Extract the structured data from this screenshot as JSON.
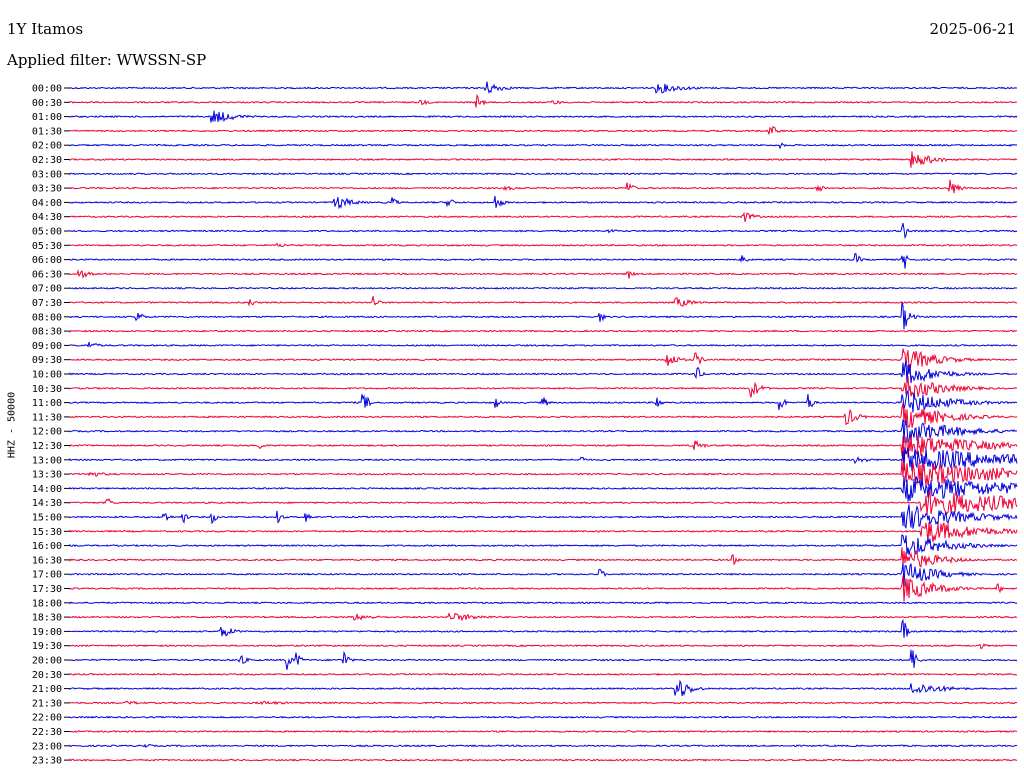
{
  "header": {
    "title": "1Y Itamos",
    "date": "2025-06-21",
    "filter_label": "Applied filter: WWSSN-SP",
    "y_axis_label": "HHZ - 50000"
  },
  "colors": {
    "blue": "#0000dd",
    "red": "#ee0033"
  },
  "chart_data": {
    "type": "line",
    "title": "1Y Itamos",
    "subtitle": "Applied filter: WWSSN-SP",
    "ylabel": "HHZ - 50000",
    "row_labels": [
      "00:00",
      "00:30",
      "01:00",
      "01:30",
      "02:00",
      "02:30",
      "03:00",
      "03:30",
      "04:00",
      "04:30",
      "05:00",
      "05:30",
      "06:00",
      "06:30",
      "07:00",
      "07:30",
      "08:00",
      "08:30",
      "09:00",
      "09:30",
      "10:00",
      "10:30",
      "11:00",
      "11:30",
      "12:00",
      "12:30",
      "13:00",
      "13:30",
      "14:00",
      "14:30",
      "15:00",
      "15:30",
      "16:00",
      "16:30",
      "17:00",
      "17:30",
      "18:00",
      "18:30",
      "19:00",
      "19:30",
      "20:00",
      "20:30",
      "21:00",
      "21:30",
      "22:00",
      "22:30",
      "23:00",
      "23:30"
    ],
    "row_colors": [
      "blue",
      "red"
    ],
    "events": [
      {
        "row": 0,
        "t": 0.44,
        "amp": 7,
        "dur": 0.015
      },
      {
        "row": 0,
        "t": 0.62,
        "amp": 6,
        "dur": 0.025
      },
      {
        "row": 1,
        "t": 0.37,
        "amp": 3,
        "dur": 0.01
      },
      {
        "row": 1,
        "t": 0.43,
        "amp": 8,
        "dur": 0.005
      },
      {
        "row": 1,
        "t": 0.51,
        "amp": 3,
        "dur": 0.01
      },
      {
        "row": 2,
        "t": 0.15,
        "amp": 8,
        "dur": 0.02
      },
      {
        "row": 3,
        "t": 0.74,
        "amp": 7,
        "dur": 0.006
      },
      {
        "row": 4,
        "t": 0.75,
        "amp": 3,
        "dur": 0.006
      },
      {
        "row": 5,
        "t": 0.89,
        "amp": 9,
        "dur": 0.02
      },
      {
        "row": 7,
        "t": 0.46,
        "amp": 2,
        "dur": 0.02
      },
      {
        "row": 7,
        "t": 0.59,
        "amp": 9,
        "dur": 0.004
      },
      {
        "row": 7,
        "t": 0.79,
        "amp": 9,
        "dur": 0.004
      },
      {
        "row": 7,
        "t": 0.93,
        "amp": 9,
        "dur": 0.008
      },
      {
        "row": 8,
        "t": 0.28,
        "amp": 8,
        "dur": 0.015
      },
      {
        "row": 8,
        "t": 0.34,
        "amp": 8,
        "dur": 0.004
      },
      {
        "row": 8,
        "t": 0.4,
        "amp": 8,
        "dur": 0.004
      },
      {
        "row": 8,
        "t": 0.45,
        "amp": 8,
        "dur": 0.006
      },
      {
        "row": 9,
        "t": 0.71,
        "amp": 7,
        "dur": 0.01
      },
      {
        "row": 10,
        "t": 0.57,
        "amp": 2,
        "dur": 0.01
      },
      {
        "row": 10,
        "t": 0.88,
        "amp": 13,
        "dur": 0.003
      },
      {
        "row": 11,
        "t": 0.22,
        "amp": 2,
        "dur": 0.02
      },
      {
        "row": 12,
        "t": 0.71,
        "amp": 7,
        "dur": 0.004
      },
      {
        "row": 12,
        "t": 0.83,
        "amp": 7,
        "dur": 0.004
      },
      {
        "row": 12,
        "t": 0.88,
        "amp": 14,
        "dur": 0.004
      },
      {
        "row": 13,
        "t": 0.01,
        "amp": 5,
        "dur": 0.01
      },
      {
        "row": 13,
        "t": 0.59,
        "amp": 6,
        "dur": 0.004
      },
      {
        "row": 15,
        "t": 0.19,
        "amp": 6,
        "dur": 0.004
      },
      {
        "row": 15,
        "t": 0.32,
        "amp": 9,
        "dur": 0.004
      },
      {
        "row": 15,
        "t": 0.64,
        "amp": 6,
        "dur": 0.015
      },
      {
        "row": 16,
        "t": 0.07,
        "amp": 7,
        "dur": 0.006
      },
      {
        "row": 16,
        "t": 0.56,
        "amp": 6,
        "dur": 0.004
      },
      {
        "row": 16,
        "t": 0.88,
        "amp": 15,
        "dur": 0.006
      },
      {
        "row": 18,
        "t": 0.02,
        "amp": 4,
        "dur": 0.01
      },
      {
        "row": 19,
        "t": 0.63,
        "amp": 9,
        "dur": 0.01
      },
      {
        "row": 19,
        "t": 0.66,
        "amp": 9,
        "dur": 0.006
      },
      {
        "row": 19,
        "t": 0.88,
        "amp": 14,
        "dur": 0.03
      },
      {
        "row": 20,
        "t": 0.66,
        "amp": 14,
        "dur": 0.004
      },
      {
        "row": 20,
        "t": 0.88,
        "amp": 14,
        "dur": 0.03
      },
      {
        "row": 21,
        "t": 0.72,
        "amp": 10,
        "dur": 0.008
      },
      {
        "row": 21,
        "t": 0.88,
        "amp": 14,
        "dur": 0.035
      },
      {
        "row": 22,
        "t": 0.31,
        "amp": 10,
        "dur": 0.006
      },
      {
        "row": 22,
        "t": 0.45,
        "amp": 6,
        "dur": 0.004
      },
      {
        "row": 22,
        "t": 0.5,
        "amp": 7,
        "dur": 0.004
      },
      {
        "row": 22,
        "t": 0.62,
        "amp": 8,
        "dur": 0.004
      },
      {
        "row": 22,
        "t": 0.75,
        "amp": 10,
        "dur": 0.004
      },
      {
        "row": 22,
        "t": 0.78,
        "amp": 10,
        "dur": 0.004
      },
      {
        "row": 22,
        "t": 0.88,
        "amp": 14,
        "dur": 0.04
      },
      {
        "row": 23,
        "t": 0.82,
        "amp": 10,
        "dur": 0.01
      },
      {
        "row": 23,
        "t": 0.88,
        "amp": 14,
        "dur": 0.04
      },
      {
        "row": 24,
        "t": 0.88,
        "amp": 14,
        "dur": 0.05
      },
      {
        "row": 25,
        "t": 0.2,
        "amp": 5,
        "dur": 0.004
      },
      {
        "row": 25,
        "t": 0.66,
        "amp": 6,
        "dur": 0.008
      },
      {
        "row": 25,
        "t": 0.88,
        "amp": 14,
        "dur": 0.07
      },
      {
        "row": 26,
        "t": 0.54,
        "amp": 5,
        "dur": 0.004
      },
      {
        "row": 26,
        "t": 0.83,
        "amp": 5,
        "dur": 0.01
      },
      {
        "row": 26,
        "t": 0.88,
        "amp": 14,
        "dur": 0.12
      },
      {
        "row": 27,
        "t": 0.02,
        "amp": 3,
        "dur": 0.02
      },
      {
        "row": 27,
        "t": 0.88,
        "amp": 14,
        "dur": 0.12
      },
      {
        "row": 28,
        "t": 0.88,
        "amp": 14,
        "dur": 0.12
      },
      {
        "row": 29,
        "t": 0.04,
        "amp": 6,
        "dur": 0.004
      },
      {
        "row": 29,
        "t": 0.9,
        "amp": 14,
        "dur": 0.12
      },
      {
        "row": 30,
        "t": 0.1,
        "amp": 8,
        "dur": 0.004
      },
      {
        "row": 30,
        "t": 0.12,
        "amp": 6,
        "dur": 0.004
      },
      {
        "row": 30,
        "t": 0.15,
        "amp": 8,
        "dur": 0.004
      },
      {
        "row": 30,
        "t": 0.22,
        "amp": 7,
        "dur": 0.004
      },
      {
        "row": 30,
        "t": 0.25,
        "amp": 6,
        "dur": 0.004
      },
      {
        "row": 30,
        "t": 0.88,
        "amp": 14,
        "dur": 0.06
      },
      {
        "row": 31,
        "t": 0.9,
        "amp": 14,
        "dur": 0.05
      },
      {
        "row": 32,
        "t": 0.88,
        "amp": 14,
        "dur": 0.04
      },
      {
        "row": 33,
        "t": 0.7,
        "amp": 6,
        "dur": 0.004
      },
      {
        "row": 33,
        "t": 0.88,
        "amp": 14,
        "dur": 0.03
      },
      {
        "row": 34,
        "t": 0.56,
        "amp": 6,
        "dur": 0.004
      },
      {
        "row": 34,
        "t": 0.88,
        "amp": 14,
        "dur": 0.03
      },
      {
        "row": 35,
        "t": 0.88,
        "amp": 14,
        "dur": 0.03
      },
      {
        "row": 35,
        "t": 0.98,
        "amp": 6,
        "dur": 0.004
      },
      {
        "row": 37,
        "t": 0.3,
        "amp": 4,
        "dur": 0.02
      },
      {
        "row": 37,
        "t": 0.4,
        "amp": 5,
        "dur": 0.03
      },
      {
        "row": 38,
        "t": 0.16,
        "amp": 8,
        "dur": 0.01
      },
      {
        "row": 38,
        "t": 0.88,
        "amp": 14,
        "dur": 0.004
      },
      {
        "row": 39,
        "t": 0.96,
        "amp": 4,
        "dur": 0.006
      },
      {
        "row": 40,
        "t": 0.18,
        "amp": 6,
        "dur": 0.006
      },
      {
        "row": 40,
        "t": 0.23,
        "amp": 10,
        "dur": 0.004
      },
      {
        "row": 40,
        "t": 0.24,
        "amp": 8,
        "dur": 0.004
      },
      {
        "row": 40,
        "t": 0.29,
        "amp": 10,
        "dur": 0.004
      },
      {
        "row": 40,
        "t": 0.89,
        "amp": 14,
        "dur": 0.004
      },
      {
        "row": 42,
        "t": 0.64,
        "amp": 14,
        "dur": 0.012
      },
      {
        "row": 42,
        "t": 0.89,
        "amp": 7,
        "dur": 0.03
      },
      {
        "row": 43,
        "t": 0.06,
        "amp": 2,
        "dur": 0.02
      },
      {
        "row": 43,
        "t": 0.2,
        "amp": 2,
        "dur": 0.04
      },
      {
        "row": 45,
        "t": 0.59,
        "amp": 2,
        "dur": 0.006
      },
      {
        "row": 46,
        "t": 0.08,
        "amp": 2,
        "dur": 0.01
      }
    ]
  },
  "notes": []
}
